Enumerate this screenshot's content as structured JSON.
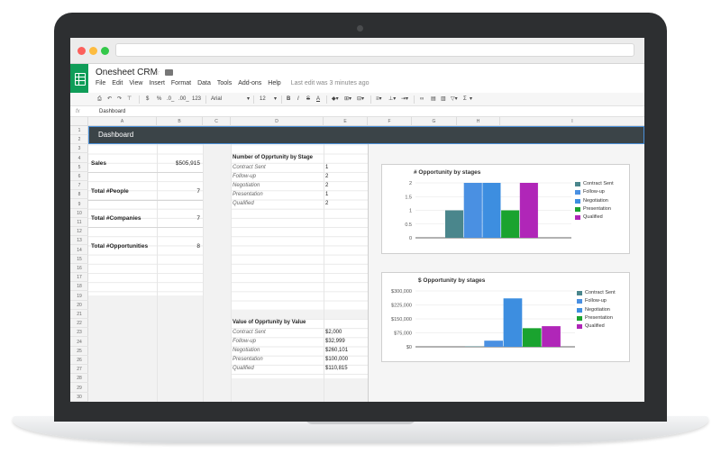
{
  "document": {
    "title": "Onesheet CRM",
    "last_edit": "Last edit was 3 minutes ago"
  },
  "menu": [
    "File",
    "Edit",
    "View",
    "Insert",
    "Format",
    "Data",
    "Tools",
    "Add-ons",
    "Help"
  ],
  "toolbar": {
    "currency": "$",
    "percent": "%",
    "dec_less": ".0_",
    "dec_more": ".00_",
    "more_formats": "123",
    "font": "Arial",
    "font_size": "12",
    "sigma": "Σ"
  },
  "formula_bar": {
    "fx_label": "fx",
    "value": "Dashboard"
  },
  "columns": [
    "A",
    "B",
    "C",
    "D",
    "E",
    "F",
    "G",
    "H",
    "I"
  ],
  "rows": [
    "1",
    "2",
    "3",
    "4",
    "5",
    "6",
    "7",
    "8",
    "9",
    "10",
    "11",
    "12",
    "13",
    "14",
    "15",
    "16",
    "17",
    "18",
    "19",
    "20",
    "21",
    "22",
    "23",
    "24",
    "25",
    "26",
    "27",
    "28",
    "29",
    "30"
  ],
  "dashboard": {
    "header": "Dashboard",
    "kpis": [
      {
        "label": "Sales",
        "value": "$505,915"
      },
      {
        "label": "Total #People",
        "value": "7"
      },
      {
        "label": "Total #Companies",
        "value": "7"
      },
      {
        "label": "Total #Opportunities",
        "value": "8"
      }
    ],
    "count_table": {
      "title": "Number of Opprtunity by Stage",
      "rows": [
        {
          "stage": "Contract Sent",
          "value": "1"
        },
        {
          "stage": "Follow-up",
          "value": "2"
        },
        {
          "stage": "Negotiation",
          "value": "2"
        },
        {
          "stage": "Presentation",
          "value": "1"
        },
        {
          "stage": "Qualified",
          "value": "2"
        }
      ]
    },
    "value_table": {
      "title": "Value of Opprtunity by Value",
      "rows": [
        {
          "stage": "Contract Sent",
          "value": "$2,000"
        },
        {
          "stage": "Follow-up",
          "value": "$32,999"
        },
        {
          "stage": "Negotiation",
          "value": "$260,101"
        },
        {
          "stage": "Presentation",
          "value": "$100,000"
        },
        {
          "stage": "Qualified",
          "value": "$110,815"
        }
      ]
    }
  },
  "colors": {
    "contract_sent": "#4a868c",
    "follow_up": "#4a90e2",
    "negotiation": "#3d8ee0",
    "presentation": "#1aa32f",
    "qualified": "#b026b8",
    "header_bar": "#3b4448",
    "sheets_green": "#0f9d58"
  },
  "chart_data": [
    {
      "type": "bar",
      "title": "# Opportunity by stages",
      "categories": [
        "Contract Sent",
        "Follow-up",
        "Negotiation",
        "Presentation",
        "Qualified"
      ],
      "values": [
        1,
        2,
        2,
        1,
        2
      ],
      "ylim": [
        0,
        2
      ],
      "yticks": [
        "0",
        "0.5",
        "1",
        "1.5",
        "2"
      ],
      "legend": "right"
    },
    {
      "type": "bar",
      "title": "$ Opportunity by stages",
      "categories": [
        "Contract Sent",
        "Follow-up",
        "Negotiation",
        "Presentation",
        "Qualified"
      ],
      "values": [
        2000,
        32999,
        260101,
        100000,
        110815
      ],
      "ylim": [
        0,
        300000
      ],
      "yticks": [
        "$0",
        "$75,000",
        "$150,000",
        "$225,000",
        "$300,000"
      ],
      "legend": "right"
    }
  ]
}
